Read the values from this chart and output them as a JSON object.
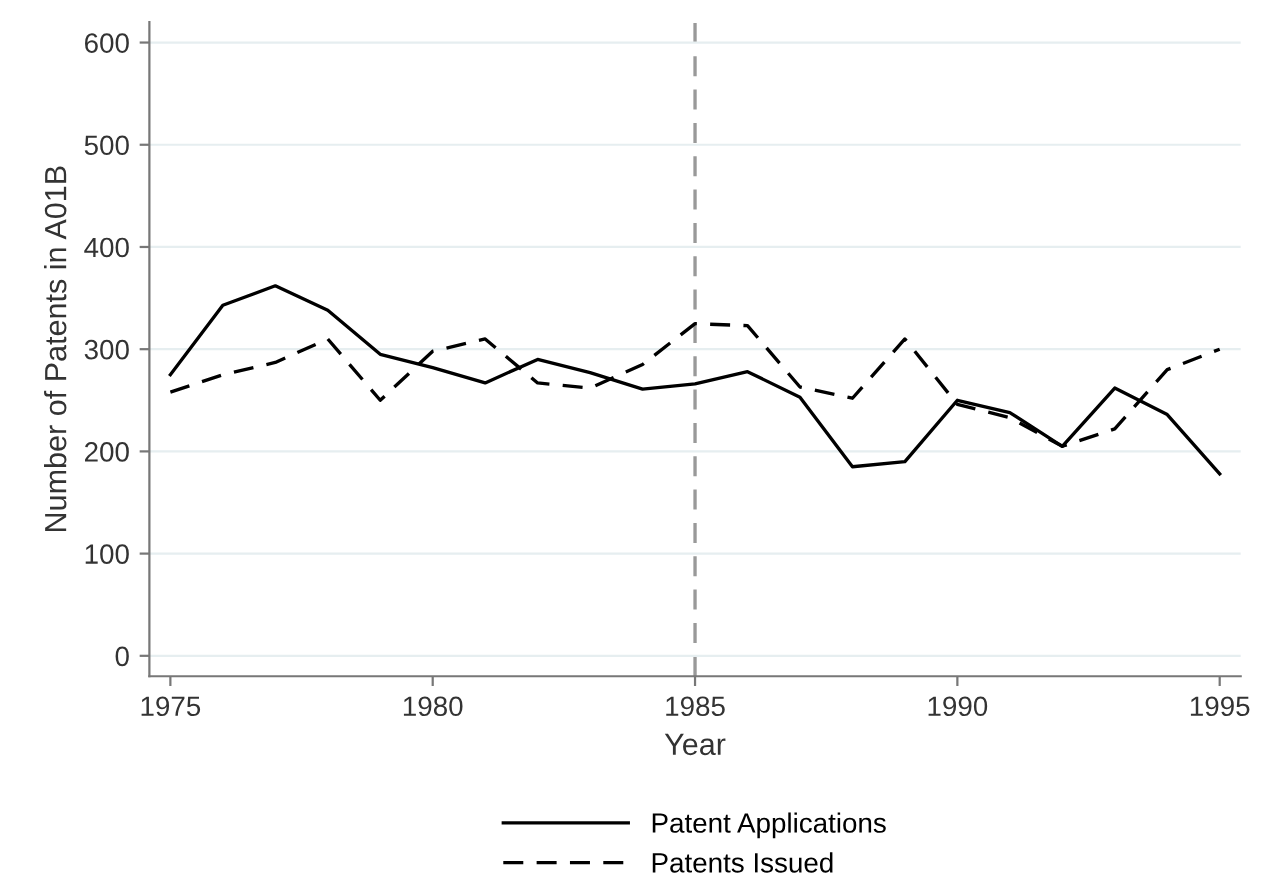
{
  "chart_data": {
    "type": "line",
    "xlabel": "Year",
    "ylabel": "Number of Patents in A01B",
    "x": [
      1975,
      1976,
      1977,
      1978,
      1979,
      1980,
      1981,
      1982,
      1983,
      1984,
      1985,
      1986,
      1987,
      1988,
      1989,
      1990,
      1991,
      1992,
      1993,
      1994,
      1995
    ],
    "series": [
      {
        "name": "Patent Applications",
        "color": "#000000",
        "line_style": "solid",
        "values": [
          275,
          343,
          362,
          338,
          295,
          282,
          267,
          290,
          277,
          261,
          266,
          278,
          253,
          185,
          190,
          250,
          238,
          205,
          262,
          236,
          178
        ]
      },
      {
        "name": "Patents Issued",
        "color": "#000000",
        "line_style": "dashed",
        "values": [
          258,
          275,
          287,
          310,
          250,
          298,
          310,
          267,
          262,
          285,
          325,
          323,
          263,
          252,
          310,
          246,
          233,
          205,
          222,
          280,
          300
        ]
      }
    ],
    "xlim": [
      1974.6,
      1995.4
    ],
    "ylim": [
      -20,
      620
    ],
    "xticks": [
      1975,
      1980,
      1985,
      1990,
      1995
    ],
    "yticks": [
      0,
      100,
      200,
      300,
      400,
      500,
      600
    ],
    "grid": "y",
    "legend": "bottom",
    "ref_lines": [
      {
        "axis": "x",
        "value": 1985,
        "color": "#999999",
        "line_style": "dashed"
      }
    ]
  }
}
